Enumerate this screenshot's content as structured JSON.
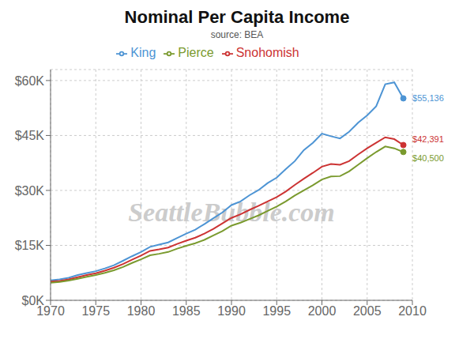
{
  "chart_data": {
    "type": "line",
    "title": "Nominal Per Capita Income",
    "subtitle": "source: BEA",
    "annotations": [
      {
        "text": "SeattleBubble.com"
      }
    ],
    "x": [
      1970,
      1971,
      1972,
      1973,
      1974,
      1975,
      1976,
      1977,
      1978,
      1979,
      1980,
      1981,
      1982,
      1983,
      1984,
      1985,
      1986,
      1987,
      1988,
      1989,
      1990,
      1991,
      1992,
      1993,
      1994,
      1995,
      1996,
      1997,
      1998,
      1999,
      2000,
      2001,
      2002,
      2003,
      2004,
      2005,
      2006,
      2007,
      2008,
      2009
    ],
    "series": [
      {
        "name": "King",
        "color": "#4d94d4",
        "values": [
          5458,
          5726,
          6162,
          6892,
          7432,
          7953,
          8715,
          9568,
          10788,
          12034,
          13200,
          14600,
          15200,
          15800,
          17000,
          18200,
          19300,
          20800,
          22400,
          24000,
          26000,
          27000,
          28700,
          30100,
          32000,
          33500,
          35800,
          38000,
          41000,
          43000,
          45500,
          44800,
          44200,
          46000,
          48500,
          50500,
          53000,
          59000,
          59500,
          55136
        ],
        "value_labels": [
          null,
          null,
          null,
          null,
          null,
          null,
          null,
          null,
          null,
          null,
          null,
          null,
          null,
          null,
          null,
          null,
          null,
          null,
          null,
          null,
          null,
          null,
          null,
          null,
          null,
          null,
          null,
          null,
          null,
          null,
          null,
          null,
          null,
          null,
          null,
          null,
          null,
          null,
          null,
          "$55,136"
        ]
      },
      {
        "name": "Snohomish",
        "color": "#cc3333",
        "values": [
          5100,
          5300,
          5700,
          6300,
          6900,
          7400,
          8100,
          8900,
          9900,
          11100,
          12200,
          13500,
          13900,
          14400,
          15400,
          16300,
          17100,
          18200,
          19500,
          21000,
          22500,
          23500,
          24700,
          25800,
          27000,
          28200,
          29700,
          31500,
          33200,
          34800,
          36500,
          37200,
          37000,
          38000,
          39800,
          41500,
          43000,
          44500,
          44000,
          42391
        ],
        "value_labels": [
          null,
          null,
          null,
          null,
          null,
          null,
          null,
          null,
          null,
          null,
          null,
          null,
          null,
          null,
          null,
          null,
          null,
          null,
          null,
          null,
          null,
          null,
          null,
          null,
          null,
          null,
          null,
          null,
          null,
          null,
          null,
          null,
          null,
          null,
          null,
          null,
          null,
          null,
          null,
          "$42,391"
        ]
      },
      {
        "name": "Pierce",
        "color": "#7a9a2e",
        "values": [
          4800,
          5000,
          5400,
          5900,
          6400,
          6900,
          7500,
          8200,
          9100,
          10200,
          11200,
          12300,
          12700,
          13200,
          14100,
          14900,
          15600,
          16500,
          17700,
          18900,
          20400,
          21200,
          22200,
          23200,
          24400,
          25600,
          27000,
          28600,
          30000,
          31400,
          33000,
          33800,
          33900,
          35200,
          37000,
          38800,
          40500,
          42000,
          41500,
          40500
        ],
        "value_labels": [
          null,
          null,
          null,
          null,
          null,
          null,
          null,
          null,
          null,
          null,
          null,
          null,
          null,
          null,
          null,
          null,
          null,
          null,
          null,
          null,
          null,
          null,
          null,
          null,
          null,
          null,
          null,
          null,
          null,
          null,
          null,
          null,
          null,
          null,
          null,
          null,
          null,
          null,
          null,
          "$40,500"
        ]
      }
    ],
    "xlim": [
      1970,
      2010
    ],
    "ylim": [
      0,
      63000
    ],
    "xticks": [
      1970,
      1975,
      1980,
      1985,
      1990,
      1995,
      2000,
      2005,
      2010
    ],
    "yticks": [
      {
        "value": 0,
        "label": "$0K"
      },
      {
        "value": 15000,
        "label": "$15K"
      },
      {
        "value": 30000,
        "label": "$30K"
      },
      {
        "value": 45000,
        "label": "$45K"
      },
      {
        "value": 60000,
        "label": "$60K"
      }
    ],
    "grid": true
  }
}
